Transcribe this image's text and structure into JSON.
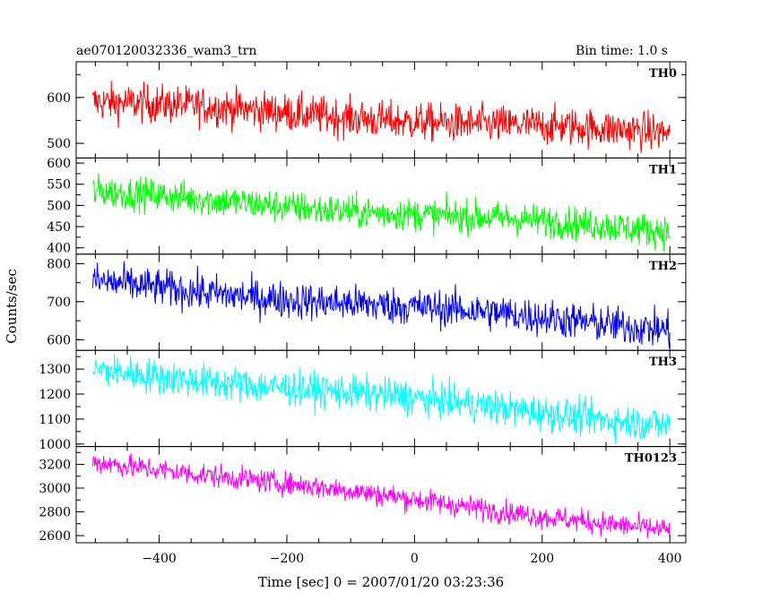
{
  "header": {
    "title": "ae070120032336_wam3_trn",
    "bin_time": "Bin time: 1.0 s"
  },
  "chart_data": {
    "type": "line",
    "xlabel": "Time [sec] 0 = 2007/01/20 03:23:36",
    "ylabel": "Counts/sec",
    "xlim": [
      -530,
      425
    ],
    "x_start": -504,
    "x_end": 400,
    "bin": 1.0,
    "x_ticks": [
      -400,
      -200,
      0,
      200,
      400
    ],
    "x_tick_labels": [
      "−400",
      "−200",
      "0",
      "200",
      "400"
    ],
    "panels": [
      {
        "name": "TH0",
        "color": "#ff0000",
        "ylim": [
          468,
          678
        ],
        "y_ticks": [
          500,
          600
        ],
        "y_tick_labels": [
          "500",
          "600"
        ],
        "trend_start": 590,
        "trend_end": 520,
        "noise": 30
      },
      {
        "name": "TH1",
        "color": "#00ff00",
        "ylim": [
          385,
          612
        ],
        "y_ticks": [
          400,
          450,
          500,
          550,
          600
        ],
        "y_tick_labels": [
          "400",
          "450",
          "500",
          "550",
          "600"
        ],
        "trend_start": 530,
        "trend_end": 440,
        "noise": 28
      },
      {
        "name": "TH2",
        "color": "#0000ff",
        "ylim": [
          572,
          825
        ],
        "y_ticks": [
          600,
          700,
          800
        ],
        "y_tick_labels": [
          "600",
          "700",
          "800"
        ],
        "trend_start": 750,
        "trend_end": 630,
        "noise": 35
      },
      {
        "name": "TH3",
        "color": "#00ffff",
        "ylim": [
          990,
          1375
        ],
        "y_ticks": [
          1000,
          1100,
          1200,
          1300
        ],
        "y_tick_labels": [
          "1000",
          "1100",
          "1200",
          "1300"
        ],
        "trend_start": 1300,
        "trend_end": 1080,
        "noise": 50
      },
      {
        "name": "TH0123",
        "color": "#ff00ff",
        "ylim": [
          2540,
          3350
        ],
        "y_ticks": [
          2600,
          2800,
          3000,
          3200
        ],
        "y_tick_labels": [
          "2600",
          "2800",
          "3000",
          "3200"
        ],
        "trend_start": 3230,
        "trend_end": 2640,
        "noise": 70
      }
    ]
  }
}
